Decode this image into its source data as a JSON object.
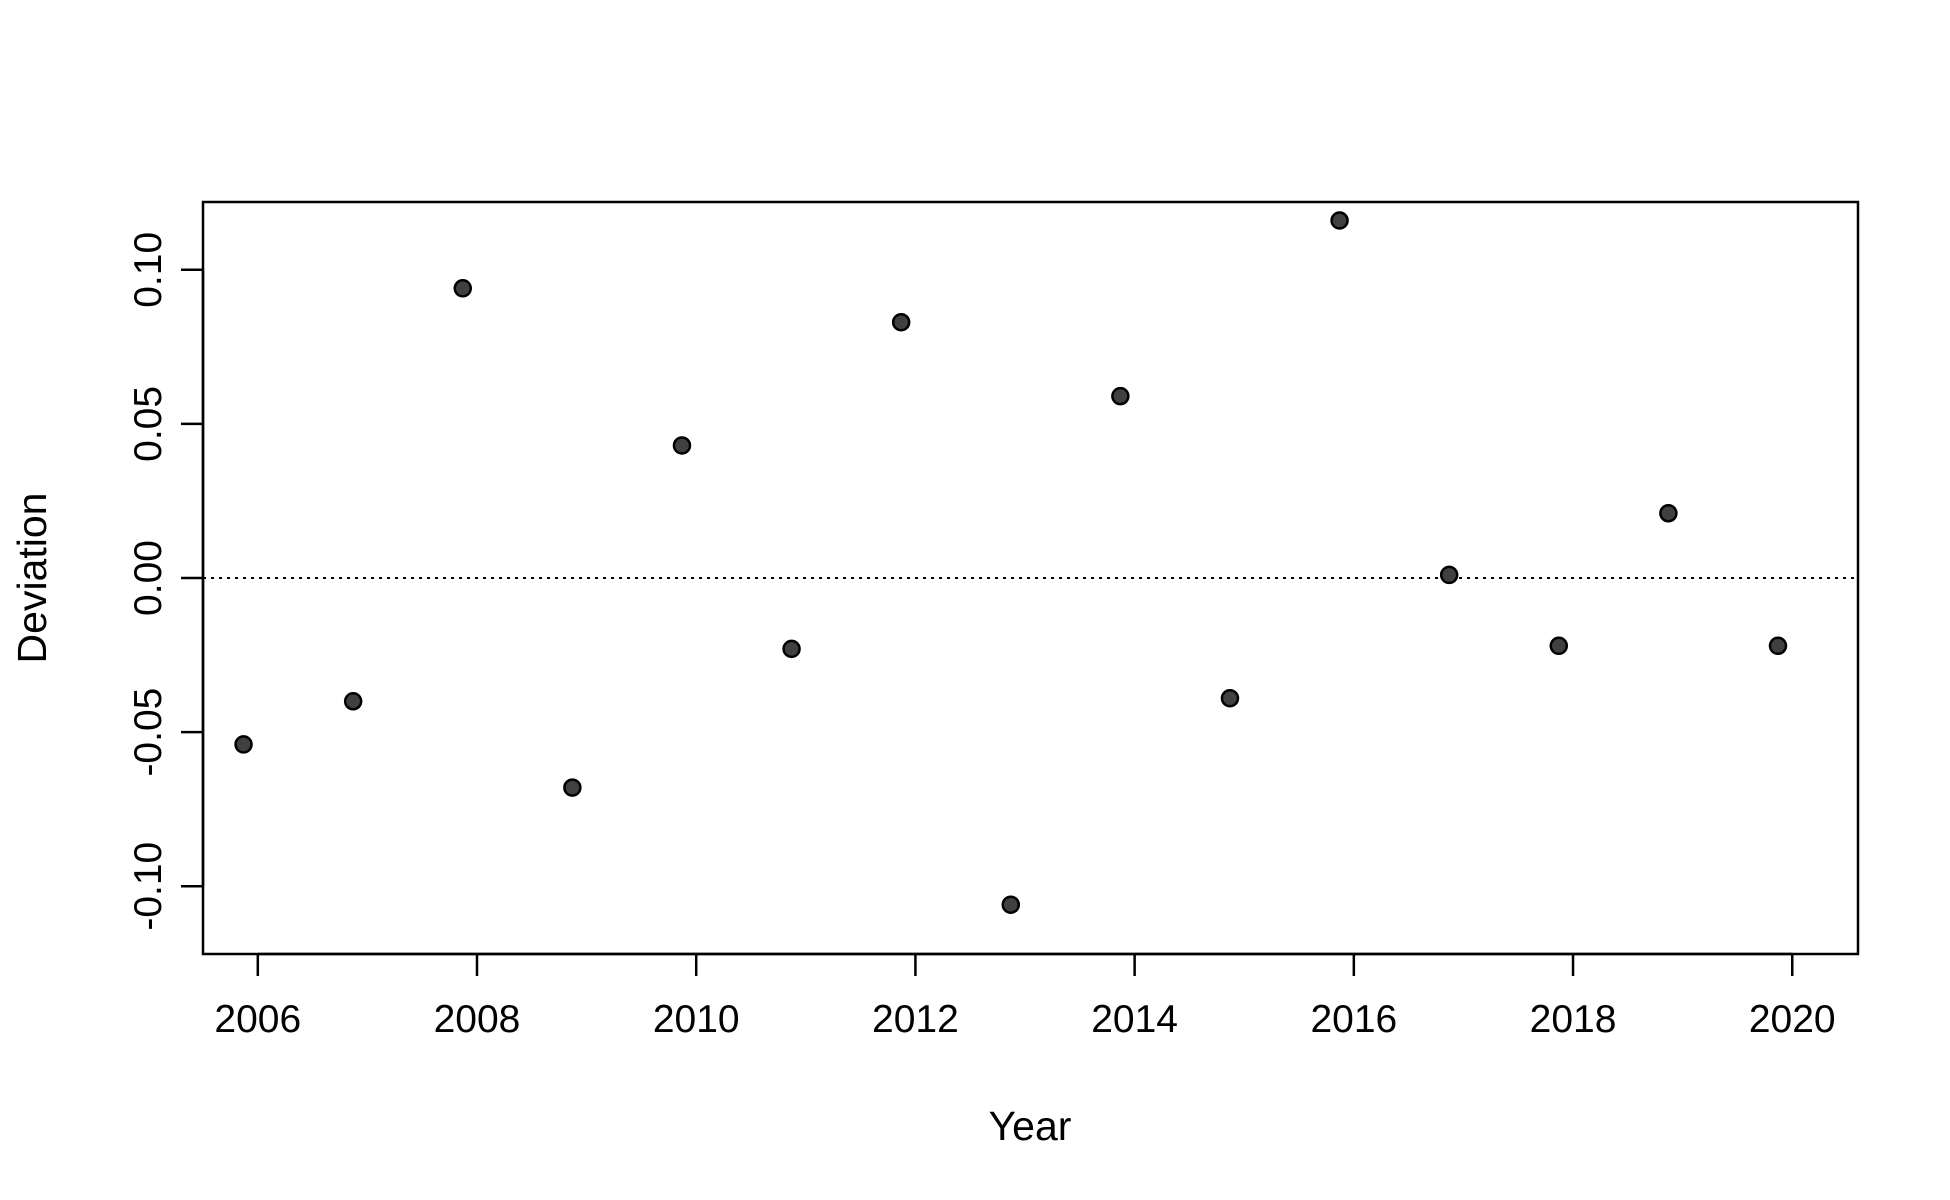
{
  "chart_data": {
    "type": "scatter",
    "title": "",
    "xlabel": "Year",
    "ylabel": "Deviation",
    "xlim": [
      2005.5,
      2020.6
    ],
    "ylim": [
      -0.122,
      0.122
    ],
    "x_ticks": [
      "2006",
      "2008",
      "2010",
      "2012",
      "2014",
      "2016",
      "2018",
      "2020"
    ],
    "y_ticks": [
      "-0.10",
      "-0.05",
      "0.00",
      "0.05",
      "0.10"
    ],
    "reference_line": {
      "y": 0,
      "style": "dotted"
    },
    "grid": false,
    "legend": "none",
    "point_color": "#404040",
    "points": [
      {
        "x": 2005.87,
        "y": -0.054
      },
      {
        "x": 2006.87,
        "y": -0.04
      },
      {
        "x": 2007.87,
        "y": 0.094
      },
      {
        "x": 2008.87,
        "y": -0.068
      },
      {
        "x": 2009.87,
        "y": 0.043
      },
      {
        "x": 2010.87,
        "y": -0.023
      },
      {
        "x": 2011.87,
        "y": 0.083
      },
      {
        "x": 2012.87,
        "y": -0.106
      },
      {
        "x": 2013.87,
        "y": 0.059
      },
      {
        "x": 2014.87,
        "y": -0.039
      },
      {
        "x": 2015.87,
        "y": 0.116
      },
      {
        "x": 2016.87,
        "y": 0.001
      },
      {
        "x": 2017.87,
        "y": -0.022
      },
      {
        "x": 2018.87,
        "y": 0.021
      },
      {
        "x": 2019.87,
        "y": -0.022
      }
    ]
  }
}
